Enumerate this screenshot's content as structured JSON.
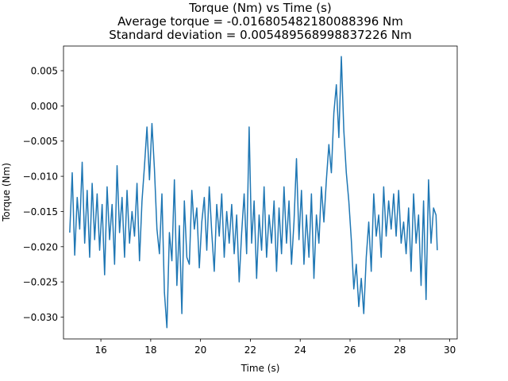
{
  "chart_data": {
    "type": "line",
    "title_lines": [
      "Torque (Nm) vs Time (s)",
      "Average torque = -0.016805482180088396 Nm",
      "Standard deviation = 0.005489568998837226 Nm"
    ],
    "xlabel": "Time (s)",
    "ylabel": "Torque (Nm)",
    "xlim": [
      14.5,
      30.3
    ],
    "ylim": [
      -0.0331,
      0.0085
    ],
    "xticks": [
      16,
      18,
      20,
      22,
      24,
      26,
      28,
      30
    ],
    "xtick_labels": [
      "16",
      "18",
      "20",
      "22",
      "24",
      "26",
      "28",
      "30"
    ],
    "yticks": [
      0.005,
      0.0,
      -0.005,
      -0.01,
      -0.015,
      -0.02,
      -0.025,
      -0.03
    ],
    "ytick_labels": [
      "0.005",
      "0.000",
      "−0.005",
      "−0.010",
      "−0.015",
      "−0.020",
      "−0.025",
      "−0.030"
    ],
    "grid": false,
    "series": [
      {
        "color": "#1f77b4",
        "x": [
          14.75,
          14.85,
          14.95,
          15.05,
          15.15,
          15.25,
          15.35,
          15.45,
          15.55,
          15.65,
          15.75,
          15.85,
          15.95,
          16.05,
          16.15,
          16.25,
          16.35,
          16.45,
          16.55,
          16.65,
          16.75,
          16.85,
          16.95,
          17.05,
          17.15,
          17.25,
          17.35,
          17.45,
          17.55,
          17.65,
          17.75,
          17.85,
          17.95,
          18.05,
          18.15,
          18.25,
          18.35,
          18.45,
          18.55,
          18.65,
          18.75,
          18.85,
          18.95,
          19.05,
          19.15,
          19.25,
          19.35,
          19.45,
          19.55,
          19.65,
          19.75,
          19.85,
          19.95,
          20.05,
          20.15,
          20.25,
          20.35,
          20.45,
          20.55,
          20.65,
          20.75,
          20.85,
          20.95,
          21.05,
          21.15,
          21.25,
          21.35,
          21.45,
          21.55,
          21.65,
          21.75,
          21.85,
          21.95,
          22.05,
          22.15,
          22.25,
          22.35,
          22.45,
          22.55,
          22.65,
          22.75,
          22.85,
          22.95,
          23.05,
          23.15,
          23.25,
          23.35,
          23.45,
          23.55,
          23.65,
          23.75,
          23.85,
          23.95,
          24.05,
          24.15,
          24.25,
          24.35,
          24.45,
          24.55,
          24.65,
          24.75,
          24.85,
          24.95,
          25.05,
          25.15,
          25.25,
          25.35,
          25.45,
          25.55,
          25.65,
          25.75,
          25.85,
          25.95,
          26.05,
          26.15,
          26.25,
          26.35,
          26.45,
          26.55,
          26.65,
          26.75,
          26.85,
          26.95,
          27.05,
          27.15,
          27.25,
          27.35,
          27.45,
          27.55,
          27.65,
          27.75,
          27.85,
          27.95,
          28.05,
          28.15,
          28.25,
          28.35,
          28.45,
          28.55,
          28.65,
          28.75,
          28.85,
          28.95,
          29.05,
          29.15,
          29.25,
          29.35,
          29.45,
          29.5
        ],
        "y": [
          -0.018,
          -0.0095,
          -0.0212,
          -0.013,
          -0.0175,
          -0.008,
          -0.0195,
          -0.012,
          -0.0215,
          -0.011,
          -0.019,
          -0.0125,
          -0.0205,
          -0.014,
          -0.024,
          -0.0115,
          -0.019,
          -0.014,
          -0.0225,
          -0.0085,
          -0.018,
          -0.013,
          -0.0215,
          -0.012,
          -0.0195,
          -0.015,
          -0.0185,
          -0.011,
          -0.022,
          -0.0135,
          -0.0085,
          -0.003,
          -0.0105,
          -0.0025,
          -0.009,
          -0.0175,
          -0.021,
          -0.0125,
          -0.0265,
          -0.0315,
          -0.018,
          -0.022,
          -0.0105,
          -0.0255,
          -0.017,
          -0.0295,
          -0.0135,
          -0.0215,
          -0.0225,
          -0.012,
          -0.0175,
          -0.0145,
          -0.023,
          -0.0165,
          -0.013,
          -0.0205,
          -0.0115,
          -0.018,
          -0.0235,
          -0.014,
          -0.0185,
          -0.0125,
          -0.0215,
          -0.015,
          -0.0195,
          -0.014,
          -0.021,
          -0.0155,
          -0.025,
          -0.018,
          -0.0125,
          -0.021,
          -0.003,
          -0.0195,
          -0.0135,
          -0.0245,
          -0.0155,
          -0.0205,
          -0.0115,
          -0.0215,
          -0.0155,
          -0.0195,
          -0.0135,
          -0.0235,
          -0.0145,
          -0.021,
          -0.0115,
          -0.0195,
          -0.0135,
          -0.0225,
          -0.0165,
          -0.0075,
          -0.019,
          -0.012,
          -0.0225,
          -0.0155,
          -0.0215,
          -0.0125,
          -0.0245,
          -0.0155,
          -0.0195,
          -0.0115,
          -0.0165,
          -0.0105,
          -0.0055,
          -0.0095,
          -0.001,
          0.003,
          -0.0045,
          0.007,
          -0.0035,
          -0.0095,
          -0.0135,
          -0.019,
          -0.026,
          -0.0225,
          -0.0285,
          -0.0245,
          -0.0295,
          -0.0215,
          -0.0165,
          -0.0235,
          -0.0125,
          -0.0185,
          -0.0155,
          -0.0215,
          -0.0115,
          -0.0185,
          -0.0135,
          -0.0175,
          -0.0125,
          -0.0185,
          -0.012,
          -0.0195,
          -0.0165,
          -0.021,
          -0.0145,
          -0.0235,
          -0.0125,
          -0.0195,
          -0.0155,
          -0.0255,
          -0.0135,
          -0.0275,
          -0.0105,
          -0.0195,
          -0.0145,
          -0.0155,
          -0.0205
        ]
      }
    ]
  }
}
